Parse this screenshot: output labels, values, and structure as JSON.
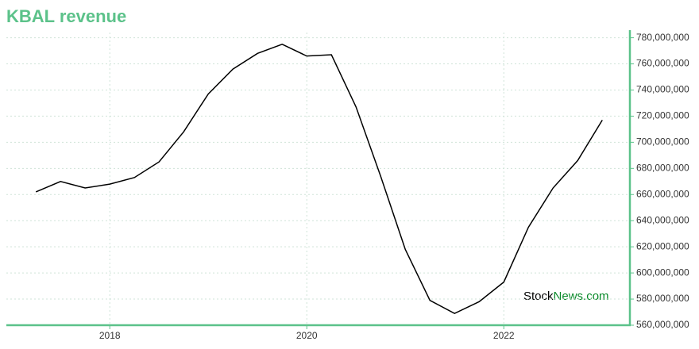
{
  "chart_data": {
    "type": "line",
    "title": "KBAL revenue",
    "watermark": [
      "Stock",
      "News.com"
    ],
    "x": [
      2017.25,
      2017.5,
      2017.75,
      2018.0,
      2018.25,
      2018.5,
      2018.75,
      2019.0,
      2019.25,
      2019.5,
      2019.75,
      2020.0,
      2020.25,
      2020.5,
      2020.75,
      2021.0,
      2021.25,
      2021.5,
      2021.75,
      2022.0,
      2022.25,
      2022.5,
      2022.75,
      2023.0
    ],
    "series": [
      {
        "name": "KBAL revenue",
        "color": "#000000",
        "values": [
          662000000,
          670000000,
          665000000,
          668000000,
          673000000,
          685000000,
          708000000,
          737000000,
          756000000,
          768000000,
          775000000,
          766000000,
          767000000,
          727000000,
          674000000,
          618000000,
          579000000,
          569000000,
          578000000,
          593000000,
          635000000,
          665000000,
          686000000,
          717000000
        ]
      }
    ],
    "xlim": [
      2016.95,
      2023.28
    ],
    "xticks": [
      2018,
      2020,
      2022
    ],
    "ylim": [
      560000000,
      784000000
    ],
    "yticks": [
      {
        "value": 560000000,
        "label": "560,000,000"
      },
      {
        "value": 580000000,
        "label": "580,000,000"
      },
      {
        "value": 600000000,
        "label": "600,000,000"
      },
      {
        "value": 620000000,
        "label": "620,000,000"
      },
      {
        "value": 640000000,
        "label": "640,000,000"
      },
      {
        "value": 660000000,
        "label": "660,000,000"
      },
      {
        "value": 680000000,
        "label": "680,000,000"
      },
      {
        "value": 700000000,
        "label": "700,000,000"
      },
      {
        "value": 720000000,
        "label": "720,000,000"
      },
      {
        "value": 740000000,
        "label": "740,000,000"
      },
      {
        "value": 760000000,
        "label": "760,000,000"
      },
      {
        "value": 780000000,
        "label": "780,000,000"
      }
    ],
    "grid": true,
    "axis_color": "#5cc28a"
  }
}
